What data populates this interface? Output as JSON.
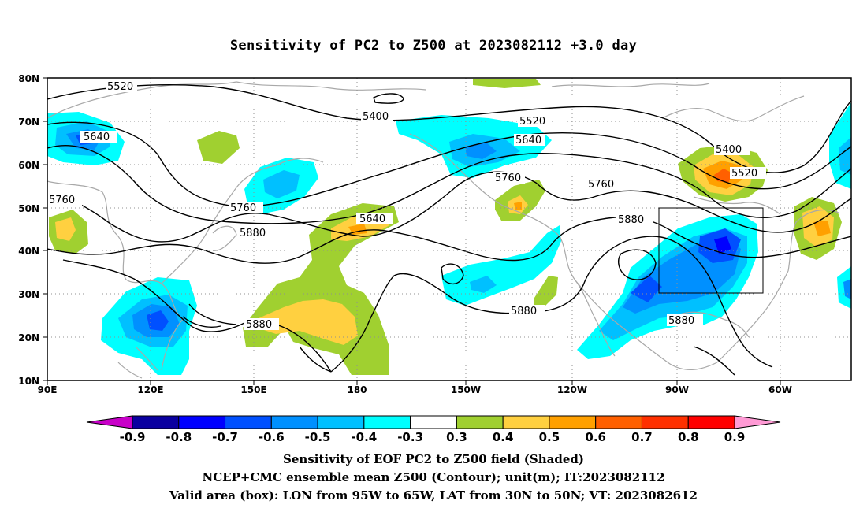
{
  "title": "Sensitivity of PC2 to Z500 at 2023082112 +3.0 day",
  "map": {
    "lat_ticks": [
      "80N",
      "70N",
      "60N",
      "50N",
      "40N",
      "30N",
      "20N",
      "10N"
    ],
    "lon_ticks": [
      "90E",
      "120E",
      "150E",
      "180",
      "150W",
      "120W",
      "90W",
      "60W"
    ],
    "extent": {
      "lon_west": "90E",
      "lon_east": "40W",
      "lat_south": "10N",
      "lat_north": "80N"
    },
    "grid": "dotted",
    "coastline_color": "#a8a8a8",
    "valid_area_box": {
      "lon_from": "95W",
      "lon_to": "65W",
      "lat_from": "30N",
      "lat_to": "50N"
    }
  },
  "contour_labels": [
    "5520",
    "5400",
    "5520",
    "5640",
    "5640",
    "5760",
    "5760",
    "5760",
    "5640",
    "5880",
    "5760",
    "5880",
    "5400",
    "5520",
    "5880",
    "5880",
    "5880"
  ],
  "colorbar": {
    "labels": [
      "-0.9",
      "-0.8",
      "-0.7",
      "-0.6",
      "-0.5",
      "-0.4",
      "-0.3",
      "0.3",
      "0.4",
      "0.5",
      "0.6",
      "0.7",
      "0.8",
      "0.9"
    ],
    "colors": [
      "#c800c8",
      "#0a00a0",
      "#0000ff",
      "#0050ff",
      "#0090ff",
      "#00c0ff",
      "#00ffff",
      "#ffffff",
      "#a0d030",
      "#ffd040",
      "#ffa000",
      "#ff6000",
      "#ff3000",
      "#ff0000",
      "#ff9ad5"
    ]
  },
  "captions": [
    "Sensitivity of EOF PC2 to Z500 field (Shaded)",
    "NCEP+CMC ensemble mean Z500 (Contour); unit(m); IT:2023082112",
    "Valid area (box): LON from 95W to 65W, LAT from 30N to 50N; VT: 2023082612"
  ]
}
